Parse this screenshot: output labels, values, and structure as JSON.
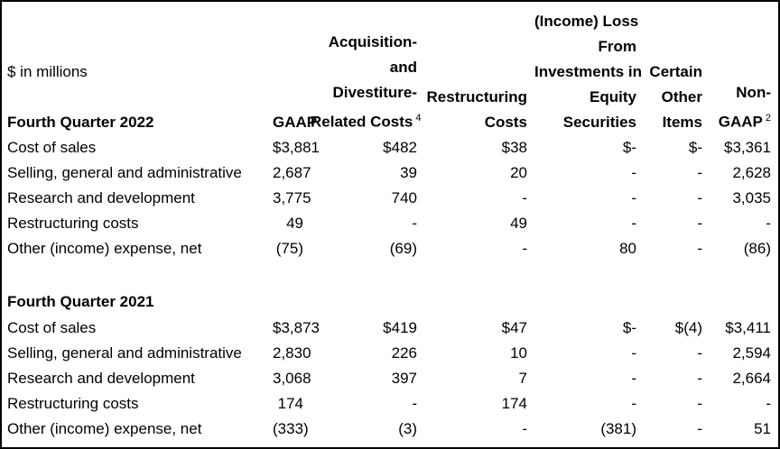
{
  "colors": {
    "border": "#000000",
    "text": "#000000",
    "background": "#ffffff"
  },
  "table": {
    "unit_label": "$ in millions",
    "columns": [
      {
        "id": "label",
        "header_lines": []
      },
      {
        "id": "gaap",
        "header_lines": [
          "GAAP"
        ]
      },
      {
        "id": "acquisition_divestiture",
        "header_lines": [
          "Acquisition-",
          "and",
          "Divestiture-",
          "Related Costs"
        ],
        "superscript": "4"
      },
      {
        "id": "restructuring",
        "header_lines": [
          "Restructuring",
          "Costs"
        ]
      },
      {
        "id": "equity_securities",
        "header_lines": [
          "(Income) Loss",
          "From",
          "Investments in",
          "Equity",
          "Securities"
        ]
      },
      {
        "id": "certain_other",
        "header_lines": [
          "Certain",
          "Other",
          "Items"
        ]
      },
      {
        "id": "non_gaap",
        "header_lines": [
          "Non-",
          "GAAP"
        ],
        "superscript": "2"
      }
    ],
    "sections": [
      {
        "title": "Fourth Quarter 2022",
        "rows": [
          {
            "label": "Cost of sales",
            "values": [
              "$3,881",
              "$482",
              "$38",
              "$-",
              "$-",
              "$3,361"
            ]
          },
          {
            "label": "Selling, general and administrative",
            "values": [
              "2,687",
              "39",
              "20",
              "-",
              "-",
              "2,628"
            ]
          },
          {
            "label": "Research and development",
            "values": [
              "3,775",
              "740",
              "-",
              "-",
              "-",
              "3,035"
            ]
          },
          {
            "label": "Restructuring costs",
            "values": [
              "49",
              "-",
              "49",
              "-",
              "-",
              "-"
            ]
          },
          {
            "label": "Other (income) expense, net",
            "values": [
              "(75)",
              "(69)",
              "-",
              "80",
              "-",
              "(86)"
            ]
          }
        ]
      },
      {
        "title": "Fourth Quarter 2021",
        "rows": [
          {
            "label": "Cost of sales",
            "values": [
              "$3,873",
              "$419",
              "$47",
              "$-",
              "$(4)",
              "$3,411"
            ]
          },
          {
            "label": "Selling, general and administrative",
            "values": [
              "2,830",
              "226",
              "10",
              "-",
              "-",
              "2,594"
            ]
          },
          {
            "label": "Research and development",
            "values": [
              "3,068",
              "397",
              "7",
              "-",
              "-",
              "2,664"
            ]
          },
          {
            "label": "Restructuring costs",
            "values": [
              "174",
              "-",
              "174",
              "-",
              "-",
              "-"
            ]
          },
          {
            "label": "Other (income) expense, net",
            "values": [
              "(333)",
              "(3)",
              "-",
              "(381)",
              "-",
              "51"
            ]
          }
        ]
      }
    ]
  }
}
